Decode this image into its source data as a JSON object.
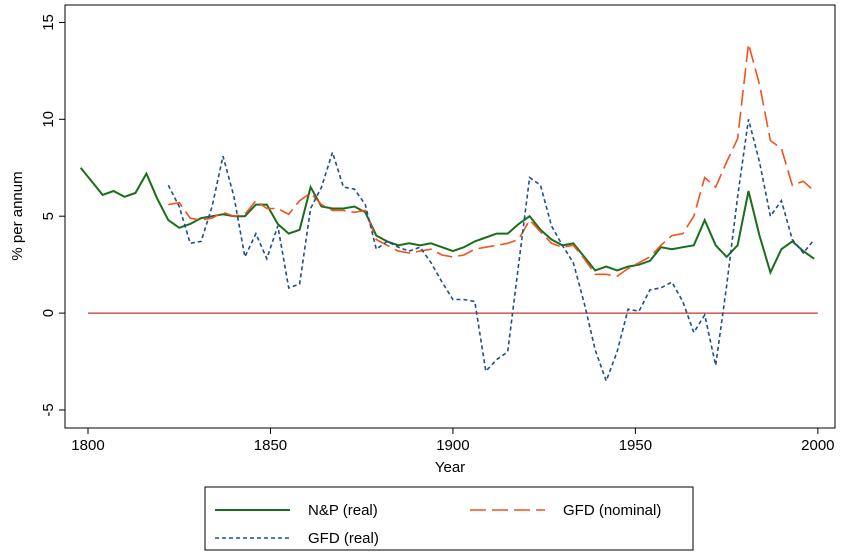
{
  "chart_data": {
    "type": "line",
    "x_label": "Year",
    "y_label": "% per annum",
    "x": [
      1798,
      1801,
      1804,
      1807,
      1810,
      1813,
      1816,
      1819,
      1822,
      1825,
      1828,
      1831,
      1834,
      1837,
      1840,
      1843,
      1846,
      1849,
      1852,
      1855,
      1858,
      1861,
      1864,
      1867,
      1870,
      1873,
      1876,
      1879,
      1882,
      1885,
      1888,
      1891,
      1894,
      1897,
      1900,
      1903,
      1906,
      1909,
      1912,
      1915,
      1918,
      1921,
      1924,
      1927,
      1930,
      1933,
      1936,
      1939,
      1942,
      1945,
      1948,
      1951,
      1954,
      1957,
      1960,
      1963,
      1966,
      1969,
      1972,
      1975,
      1978,
      1981,
      1984,
      1987,
      1990,
      1993,
      1996,
      1999
    ],
    "series": [
      {
        "name": "N&P (real)",
        "color": "#1a6e1a",
        "dash": "solid",
        "values": [
          7.5,
          6.8,
          6.1,
          6.3,
          6.0,
          6.2,
          7.2,
          5.9,
          4.8,
          4.4,
          4.6,
          4.9,
          5.0,
          5.1,
          5.0,
          5.0,
          5.6,
          5.6,
          4.6,
          4.1,
          4.3,
          6.5,
          5.5,
          5.4,
          5.4,
          5.5,
          5.2,
          4.0,
          3.7,
          3.5,
          3.6,
          3.5,
          3.6,
          3.4,
          3.2,
          3.4,
          3.7,
          3.9,
          4.1,
          4.1,
          4.6,
          5.0,
          4.3,
          3.8,
          3.5,
          3.6,
          2.9,
          2.2,
          2.4,
          2.2,
          2.4,
          2.5,
          2.7,
          3.4,
          3.3,
          3.4,
          3.5,
          4.8,
          3.5,
          2.9,
          3.5,
          6.3,
          4.0,
          2.1,
          3.3,
          3.7,
          3.2,
          2.8
        ]
      },
      {
        "name": "GFD (nominal)",
        "color": "#f4511e",
        "dash": "long-dash",
        "values": [
          null,
          null,
          null,
          null,
          null,
          null,
          null,
          null,
          5.6,
          5.7,
          4.9,
          4.8,
          4.9,
          5.2,
          5.0,
          5.1,
          5.8,
          5.4,
          5.4,
          5.1,
          5.8,
          6.2,
          5.6,
          5.3,
          5.3,
          5.2,
          5.3,
          3.8,
          3.5,
          3.2,
          3.1,
          3.2,
          3.3,
          3.0,
          2.9,
          3.0,
          3.3,
          3.4,
          3.5,
          3.6,
          3.8,
          4.8,
          4.2,
          3.6,
          3.4,
          3.5,
          2.8,
          2.0,
          2.0,
          1.9,
          2.3,
          2.6,
          2.9,
          3.5,
          4.0,
          4.1,
          5.0,
          7.0,
          6.5,
          7.8,
          9.0,
          13.9,
          11.8,
          8.9,
          8.5,
          6.6,
          6.8,
          6.3
        ]
      },
      {
        "name": "GFD (real)",
        "color": "#1f4e8c",
        "dash": "short-dash",
        "values": [
          null,
          null,
          null,
          null,
          null,
          null,
          null,
          null,
          6.6,
          5.5,
          3.6,
          3.7,
          5.5,
          8.1,
          6.0,
          2.9,
          4.1,
          2.8,
          4.5,
          1.3,
          1.5,
          5.4,
          6.5,
          8.3,
          6.5,
          6.4,
          5.6,
          3.3,
          3.7,
          3.4,
          3.2,
          3.4,
          2.6,
          1.6,
          0.7,
          0.7,
          0.6,
          -3.0,
          -2.4,
          -2.0,
          2.5,
          7.0,
          6.6,
          4.5,
          3.5,
          2.6,
          0.5,
          -1.9,
          -3.5,
          -2.0,
          0.2,
          0.1,
          1.2,
          1.3,
          1.6,
          0.6,
          -1.0,
          -0.1,
          -2.7,
          1.4,
          6.0,
          10.0,
          7.8,
          5.0,
          5.8,
          3.8,
          3.1,
          3.8
        ]
      }
    ],
    "hline": {
      "value": 0,
      "color": "#c0392b"
    },
    "xlim": [
      1793.7,
      2004.7
    ],
    "ylim": [
      -5.93,
      15.9
    ],
    "xticks": [
      1800,
      1850,
      1900,
      1950,
      2000
    ],
    "yticks": [
      -5,
      0,
      5,
      10,
      15
    ],
    "grid": false,
    "legend": "bottom"
  }
}
